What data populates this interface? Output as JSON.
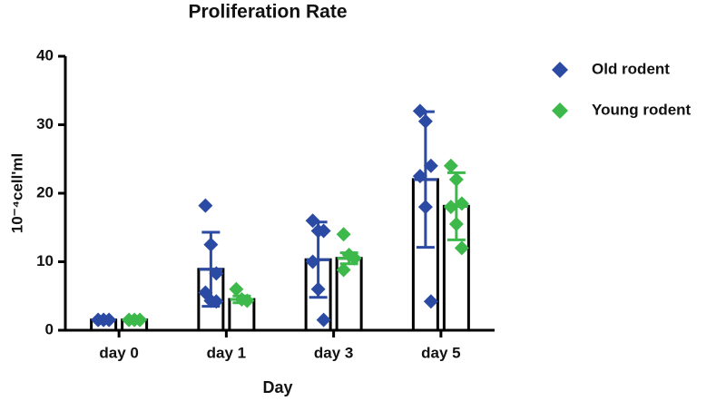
{
  "chart_data": {
    "type": "bar",
    "title": "Proliferation Rate",
    "xlabel": "Day",
    "ylabel": "10⁻⁴cell'ml",
    "categories": [
      "day 0",
      "day 1",
      "day 3",
      "day 5"
    ],
    "ylim": [
      0,
      40
    ],
    "yticks": [
      0,
      10,
      20,
      30,
      40
    ],
    "legend": "right",
    "series": [
      {
        "name": "Old rodent",
        "color": "#2b4aa3",
        "values": [
          1.5,
          8.9,
          10.3,
          22
        ],
        "errors": [
          0,
          5.4,
          5.5,
          9.9
        ],
        "points": [
          [
            1.5,
            1.5,
            1.5,
            1.5,
            1.5,
            1.5
          ],
          [
            18.2,
            12.5,
            8.3,
            5.5,
            4.3,
            4.2
          ],
          [
            16.0,
            14.5,
            14.5,
            10.0,
            6.0,
            1.5
          ],
          [
            32.0,
            30.5,
            24.0,
            22.5,
            18.0,
            4.2
          ]
        ]
      },
      {
        "name": "Young rodent",
        "color": "#3db94b",
        "values": [
          1.5,
          4.5,
          10.5,
          18.1
        ],
        "errors": [
          0,
          0.5,
          0.8,
          4.9
        ],
        "points": [
          [
            1.5,
            1.5,
            1.5,
            1.5,
            1.5,
            1.5
          ],
          [
            6.0,
            4.5,
            4.3
          ],
          [
            14.0,
            11.0,
            10.5,
            8.8
          ],
          [
            24.0,
            22.0,
            18.5,
            18.0,
            15.5,
            12.0
          ]
        ]
      }
    ]
  }
}
